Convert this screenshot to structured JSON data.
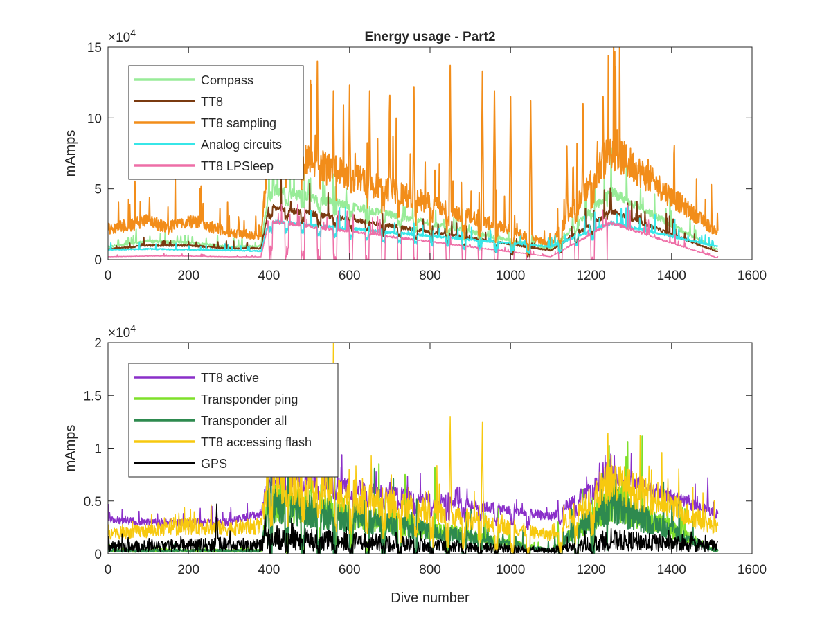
{
  "chart_data": [
    {
      "type": "line",
      "title": "Energy usage - Part2",
      "xlabel": "",
      "ylabel": "mAmps",
      "exponent_label": "×10",
      "exponent_power": "4",
      "xlim": [
        0,
        1600
      ],
      "ylim": [
        0,
        150000
      ],
      "xticks": [
        0,
        200,
        400,
        600,
        800,
        1000,
        1200,
        1400,
        1600
      ],
      "xtick_labels": [
        "0",
        "200",
        "400",
        "600",
        "800",
        "1000",
        "1200",
        "1400",
        "1600"
      ],
      "yticks": [
        0,
        50000,
        100000,
        150000
      ],
      "ytick_labels": [
        "0",
        "5",
        "10",
        "15"
      ],
      "grid": false,
      "legend_position": "top-left",
      "series": [
        {
          "name": "Compass",
          "color": "#98ec98",
          "width": 2,
          "x": [
            0,
            100,
            200,
            300,
            380,
            400,
            1100,
            1250,
            1510
          ],
          "base": [
            9000,
            13000,
            12000,
            9000,
            9500,
            50000,
            7500,
            48000,
            7500
          ],
          "noise": 0.08,
          "spikiness": 0.35,
          "dip": 8000
        },
        {
          "name": "TT8",
          "color": "#7a3a10",
          "width": 2,
          "x": [
            0,
            100,
            200,
            300,
            380,
            400,
            1100,
            1250,
            1510
          ],
          "base": [
            7500,
            10000,
            10000,
            8000,
            8000,
            37000,
            6500,
            34000,
            6000
          ],
          "noise": 0.06,
          "spikiness": 0.35,
          "dip": 7000
        },
        {
          "name": "TT8 sampling",
          "color": "#f28d1a",
          "width": 2,
          "x": [
            0,
            50,
            100,
            150,
            180,
            230,
            300,
            380,
            400,
            1100,
            1250,
            1510
          ],
          "base": [
            22000,
            24000,
            28000,
            22000,
            27000,
            26000,
            19000,
            17000,
            78000,
            11000,
            78000,
            20000
          ],
          "noise": 0.18,
          "spikiness": 0.55,
          "dip": 12000,
          "peaks": [
            [
              520,
              140000
            ],
            [
              560,
              119000
            ],
            [
              600,
              123000
            ],
            [
              650,
              119000
            ],
            [
              700,
              116000
            ],
            [
              760,
              122000
            ],
            [
              850,
              137000
            ],
            [
              930,
              133000
            ],
            [
              960,
              119000
            ],
            [
              1000,
              115000
            ],
            [
              1050,
              112000
            ],
            [
              1140,
              80000
            ],
            [
              1180,
              110000
            ],
            [
              1230,
              115000
            ],
            [
              1300,
              58000
            ],
            [
              1350,
              52000
            ],
            [
              1400,
              50000
            ]
          ]
        },
        {
          "name": "Analog circuits",
          "color": "#37e6e8",
          "width": 2,
          "x": [
            0,
            100,
            200,
            300,
            380,
            400,
            1100,
            1250,
            1510
          ],
          "base": [
            7000,
            7500,
            7000,
            6500,
            6000,
            27000,
            9000,
            26000,
            9500
          ],
          "noise": 0.05,
          "spikiness": 0.35,
          "dip": 7000
        },
        {
          "name": "TT8 LPSleep",
          "color": "#ee6fa7",
          "width": 1.5,
          "x": [
            0,
            100,
            200,
            300,
            380,
            400,
            1100,
            1250,
            1510
          ],
          "base": [
            2000,
            2500,
            2500,
            2000,
            2000,
            27000,
            2000,
            26000,
            1500
          ],
          "noise": 0.05,
          "spikiness": 0.35,
          "dip": 27000
        }
      ]
    },
    {
      "type": "line",
      "title": "",
      "xlabel": "Dive number",
      "ylabel": "mAmps",
      "exponent_label": "×10",
      "exponent_power": "4",
      "xlim": [
        0,
        1600
      ],
      "ylim": [
        0,
        20000
      ],
      "xticks": [
        0,
        200,
        400,
        600,
        800,
        1000,
        1200,
        1400,
        1600
      ],
      "xtick_labels": [
        "0",
        "200",
        "400",
        "600",
        "800",
        "1000",
        "1200",
        "1400",
        "1600"
      ],
      "yticks": [
        0,
        5000,
        10000,
        15000,
        20000
      ],
      "ytick_labels": [
        "0",
        "0.5",
        "1",
        "1.5",
        "2"
      ],
      "grid": false,
      "legend_position": "top-left",
      "series": [
        {
          "name": "TT8 active",
          "color": "#8a2fc9",
          "width": 1.5,
          "x": [
            0,
            100,
            200,
            300,
            380,
            400,
            1100,
            1250,
            1510
          ],
          "base": [
            3300,
            3000,
            2900,
            3000,
            3800,
            7500,
            3500,
            7500,
            3800
          ],
          "noise": 0.12,
          "spikiness": 0.2,
          "dip": 1500,
          "peaks": [
            [
              1490,
              7200
            ]
          ]
        },
        {
          "name": "Transponder ping",
          "color": "#7fe02a",
          "width": 2,
          "x": [
            0,
            100,
            200,
            380,
            400,
            1100,
            1250,
            1510
          ],
          "base": [
            300,
            300,
            300,
            300,
            5000,
            300,
            5000,
            300
          ],
          "noise": 0.4,
          "spikiness": 0.9,
          "dip": 5000
        },
        {
          "name": "Transponder all",
          "color": "#2e8a4f",
          "width": 2,
          "x": [
            0,
            100,
            200,
            380,
            400,
            1100,
            1250,
            1510
          ],
          "base": [
            300,
            300,
            300,
            300,
            4600,
            300,
            4600,
            300
          ],
          "noise": 0.4,
          "spikiness": 0.9,
          "dip": 4600
        },
        {
          "name": "TT8 accessing flash",
          "color": "#f7c90f",
          "width": 1.5,
          "x": [
            0,
            100,
            200,
            300,
            380,
            400,
            1100,
            1250,
            1510
          ],
          "base": [
            1800,
            2200,
            2600,
            2400,
            2600,
            7000,
            1700,
            7000,
            2500
          ],
          "noise": 0.3,
          "spikiness": 0.4,
          "dip": 2500,
          "peaks": [
            [
              560,
              20000
            ],
            [
              850,
              13000
            ],
            [
              930,
              12500
            ]
          ]
        },
        {
          "name": "GPS",
          "color": "#000000",
          "width": 1.5,
          "x": [
            0,
            100,
            200,
            300,
            380,
            400,
            1100,
            1250,
            1510
          ],
          "base": [
            700,
            700,
            800,
            900,
            800,
            1500,
            300,
            1300,
            700
          ],
          "noise": 0.8,
          "spikiness": 0.3,
          "dip": 900,
          "peaks": [
            [
              270,
              4700
            ],
            [
              390,
              3700
            ]
          ]
        }
      ]
    }
  ]
}
